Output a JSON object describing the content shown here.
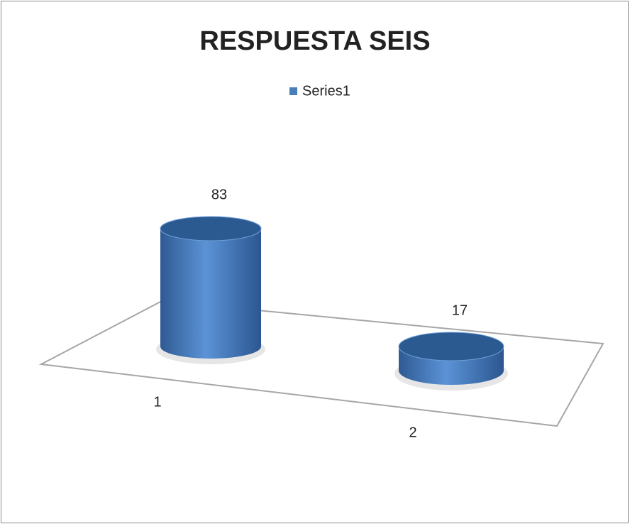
{
  "chart_data": {
    "type": "bar",
    "title": "RESPUESTA SEIS",
    "categories": [
      "1",
      "2"
    ],
    "series": [
      {
        "name": "Series1",
        "color": "#4a7ebb",
        "values": [
          83,
          17
        ]
      }
    ]
  }
}
